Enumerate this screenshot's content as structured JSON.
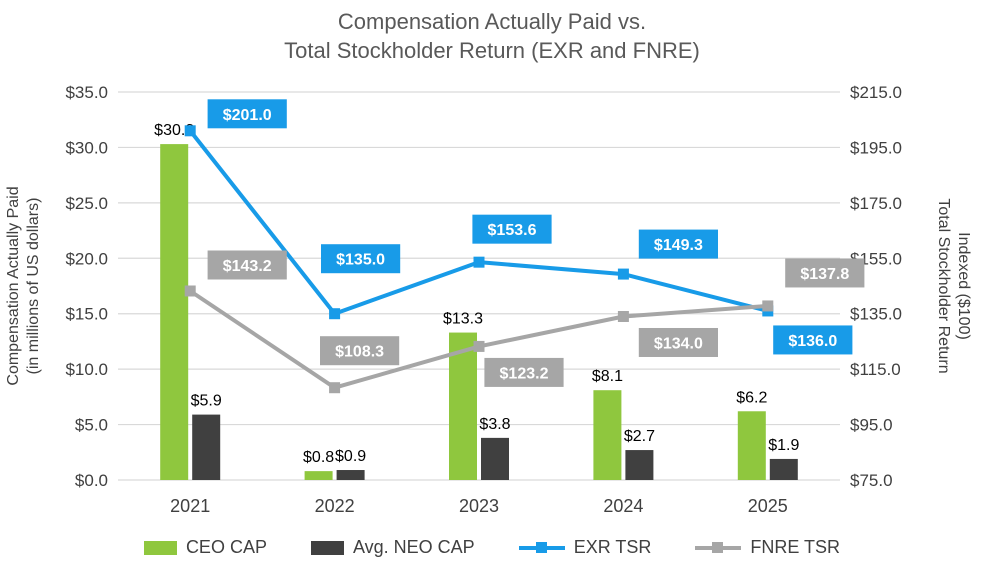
{
  "title": {
    "line1": "Compensation Actually Paid vs.",
    "line2": "Total Stockholder Return (EXR and FNRE)"
  },
  "chart_data": {
    "type": "combo",
    "categories": [
      "2021",
      "2022",
      "2023",
      "2024",
      "2025"
    ],
    "series": [
      {
        "name": "CEO CAP",
        "type": "bar",
        "axis": "left",
        "color": "#8FC73E",
        "values": [
          30.3,
          0.8,
          13.3,
          8.1,
          6.2
        ],
        "labels": [
          "$30.3",
          "$0.8",
          "$13.3",
          "$8.1",
          "$6.2"
        ]
      },
      {
        "name": "Avg. NEO CAP",
        "type": "bar",
        "axis": "left",
        "color": "#404040",
        "values": [
          5.9,
          0.9,
          3.8,
          2.7,
          1.9
        ],
        "labels": [
          "$5.9",
          "$0.9",
          "$3.8",
          "$2.7",
          "$1.9"
        ]
      },
      {
        "name": "EXR TSR",
        "type": "line",
        "axis": "right",
        "color": "#189BE8",
        "values": [
          201.0,
          135.0,
          153.6,
          149.3,
          136.0
        ],
        "labels": [
          "$201.0",
          "$135.0",
          "$153.6",
          "$149.3",
          "$136.0"
        ],
        "label_offsets": [
          [
            57,
            -17
          ],
          [
            26,
            -55
          ],
          [
            33,
            -33
          ],
          [
            55,
            -30
          ],
          [
            45,
            29
          ]
        ]
      },
      {
        "name": "FNRE TSR",
        "type": "line",
        "axis": "right",
        "color": "#A6A6A6",
        "values": [
          143.2,
          108.3,
          123.2,
          134.0,
          137.8
        ],
        "labels": [
          "$143.2",
          "$108.3",
          "$123.2",
          "$134.0",
          "$137.8"
        ],
        "label_offsets": [
          [
            57,
            -26
          ],
          [
            25,
            -37
          ],
          [
            45,
            26
          ],
          [
            55,
            26
          ],
          [
            57,
            -33
          ]
        ]
      }
    ],
    "left_axis": {
      "title_line1": "Compensation Actually Paid",
      "title_line2": "(in millions of US dollars)",
      "min": 0,
      "max": 35,
      "step": 5,
      "tick_labels": [
        "$0.0",
        "$5.0",
        "$10.0",
        "$15.0",
        "$20.0",
        "$25.0",
        "$30.0",
        "$35.0"
      ]
    },
    "right_axis": {
      "title_line1": "Total Stockholder Return",
      "title_line2": "Indexed ($100)",
      "min": 75,
      "max": 215,
      "step": 20,
      "tick_labels": [
        "$75.0",
        "$95.0",
        "$115.0",
        "$135.0",
        "$155.0",
        "$175.0",
        "$195.0",
        "$215.0"
      ]
    },
    "grid": true,
    "legend_position": "bottom",
    "grid_color": "#D9D9D9"
  }
}
